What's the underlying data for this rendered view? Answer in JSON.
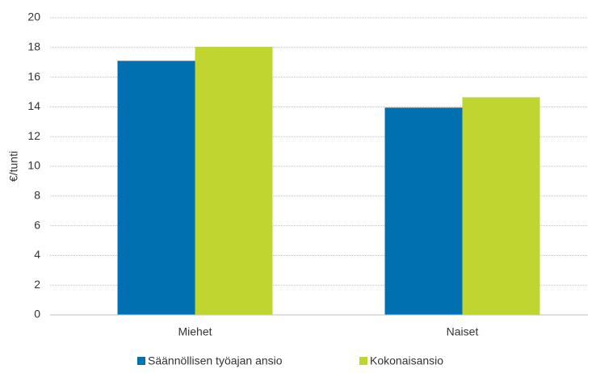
{
  "chart_data": {
    "type": "bar",
    "y_label": "€/tunti",
    "categories": [
      "Miehet",
      "Naiset"
    ],
    "series": [
      {
        "name": "Säännöllisen työajan ansio",
        "color": "#0070b0",
        "values": [
          17.1,
          13.95
        ]
      },
      {
        "name": "Kokonaisansio",
        "color": "#c1d530",
        "values": [
          18.05,
          14.65
        ]
      }
    ],
    "ylim": [
      0,
      20
    ],
    "yticks": [
      0,
      2,
      4,
      6,
      8,
      10,
      12,
      14,
      16,
      18,
      20
    ],
    "grid": true,
    "legend": "bottom"
  }
}
